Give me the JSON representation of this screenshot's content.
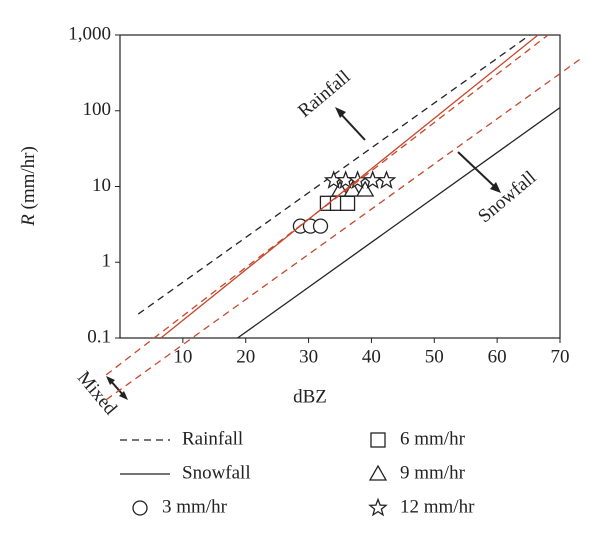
{
  "chart_data": {
    "type": "line",
    "x_label": "dBZ",
    "y_label": [
      "R",
      "(mm/hr)"
    ],
    "log_y": true,
    "xlim": [
      0,
      70
    ],
    "xticks": [
      10,
      20,
      30,
      40,
      50,
      60,
      70
    ],
    "ylim": [
      0.1,
      1000
    ],
    "yticks": [
      0.1,
      1,
      10,
      100,
      {
        "value": 1000,
        "label": "1,000"
      }
    ],
    "annotations": [
      "Rainfall",
      "Snowfall",
      "Mixed"
    ],
    "series": [
      {
        "name": "Rainfall",
        "color": "#222222",
        "dash": true,
        "marker": null,
        "x": [
          2.9,
          65.2
        ],
        "values": [
          0.207,
          1000
        ]
      },
      {
        "name": "Snowfall",
        "color": "#222222",
        "dash": false,
        "marker": null,
        "x": [
          18.7,
          70
        ],
        "values": [
          0.1,
          110
        ]
      },
      {
        "name": "3 mm/hr",
        "color": "#222222",
        "marker": "circle",
        "x": [
          28.7,
          30.3,
          31.9
        ],
        "values": [
          3,
          3,
          3
        ]
      },
      {
        "name": "6 mm/hr",
        "color": "#222222",
        "marker": "square",
        "x": [
          33,
          34.6,
          36.2
        ],
        "values": [
          6,
          6,
          6
        ]
      },
      {
        "name": "9 mm/hr",
        "color": "#222222",
        "marker": "triangle",
        "x": [
          35,
          37,
          39
        ],
        "values": [
          9,
          9,
          9
        ]
      },
      {
        "name": "12 mm/hr",
        "color": "#222222",
        "marker": "star",
        "x": [
          34,
          35.9,
          37.8,
          40.2,
          42.4
        ],
        "values": [
          12,
          12,
          12,
          12,
          12
        ]
      },
      {
        "color": "#c8462a",
        "dash": false,
        "marker": null,
        "x": [
          6.5,
          66.5
        ],
        "values": [
          0.1,
          1000
        ]
      },
      {
        "color": "#c8462a",
        "dash": true,
        "marker": null,
        "x": [
          -2.2,
          68.1
        ],
        "values": [
          0.0326,
          1000
        ]
      },
      {
        "color": "#c8462a",
        "dash": true,
        "marker": null,
        "x": [
          -2.2,
          73.2
        ],
        "values": [
          0.0153,
          480
        ]
      }
    ]
  }
}
